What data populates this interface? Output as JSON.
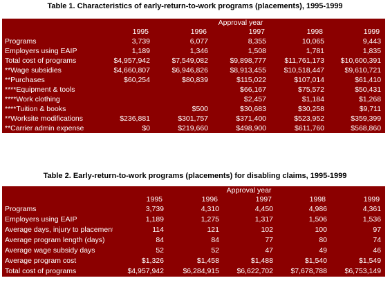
{
  "table1": {
    "title": "Table 1. Characteristics of early-return-to-work programs (placements), 1995-1999",
    "group_header": "Approval  year",
    "years": [
      "1995",
      "1996",
      "1997",
      "1998",
      "1999"
    ],
    "rows": [
      {
        "label": "Programs",
        "values": [
          "3,739",
          "6,077",
          "8,355",
          "10,065",
          "9,443"
        ]
      },
      {
        "label": "Employers using EAIP",
        "values": [
          "1,189",
          "1,346",
          "1,508",
          "1,781",
          "1,835"
        ]
      },
      {
        "label": "Total cost of programs",
        "values": [
          "$4,957,942",
          "$7,549,082",
          "$9,898,777",
          "$11,761,173",
          "$10,600,391"
        ]
      },
      {
        "label": "**Wage subsidies",
        "values": [
          "$4,660,807",
          "$6,946,826",
          "$8,913,455",
          "$10,518,447",
          "$9,610,721"
        ]
      },
      {
        "label": "**Purchases",
        "values": [
          "$60,254",
          "$80,839",
          "$115,022",
          "$107,014",
          "$61,410"
        ]
      },
      {
        "label": "****Equipment & tools",
        "values": [
          "",
          "",
          "$66,167",
          "$75,572",
          "$50,431"
        ]
      },
      {
        "label": "****Work clothing",
        "values": [
          "",
          "",
          "$2,457",
          "$1,184",
          "$1,268"
        ]
      },
      {
        "label": "****Tuition & books",
        "values": [
          "",
          "$500",
          "$30,683",
          "$30,258",
          "$9,711"
        ]
      },
      {
        "label": "**Worksite modifications",
        "values": [
          "$236,881",
          "$301,757",
          "$371,400",
          "$523,952",
          "$359,399"
        ]
      },
      {
        "label": "**Carrier admin expense",
        "values": [
          "$0",
          "$219,660",
          "$498,900",
          "$611,760",
          "$568,860"
        ]
      }
    ]
  },
  "table2": {
    "title": "Table 2. Early-return-to-work programs (placements) for disabling claims, 1995-1999",
    "group_header": "Approval  year",
    "years": [
      "1995",
      "1996",
      "1997",
      "1998",
      "1999"
    ],
    "rows": [
      {
        "label": "Programs",
        "values": [
          "3,739",
          "4,310",
          "4,450",
          "4,986",
          "4,361"
        ]
      },
      {
        "label": "Employers using EAIP",
        "values": [
          "1,189",
          "1,275",
          "1,317",
          "1,506",
          "1,536"
        ]
      },
      {
        "label": "Average days, injury to placement",
        "values": [
          "114",
          "121",
          "102",
          "100",
          "97"
        ]
      },
      {
        "label": "Average program length (days)",
        "values": [
          "84",
          "84",
          "77",
          "80",
          "74"
        ]
      },
      {
        "label": "Average wage subsidy days",
        "values": [
          "52",
          "52",
          "47",
          "49",
          "46"
        ]
      },
      {
        "label": "Average program cost",
        "values": [
          "$1,326",
          "$1,458",
          "$1,488",
          "$1,540",
          "$1,549"
        ]
      },
      {
        "label": "Total cost of programs",
        "values": [
          "$4,957,942",
          "$6,284,915",
          "$6,622,702",
          "$7,678,788",
          "$6,753,149"
        ]
      }
    ]
  },
  "colors": {
    "table_background": "#8b0000",
    "table_text": "#ffffff"
  }
}
